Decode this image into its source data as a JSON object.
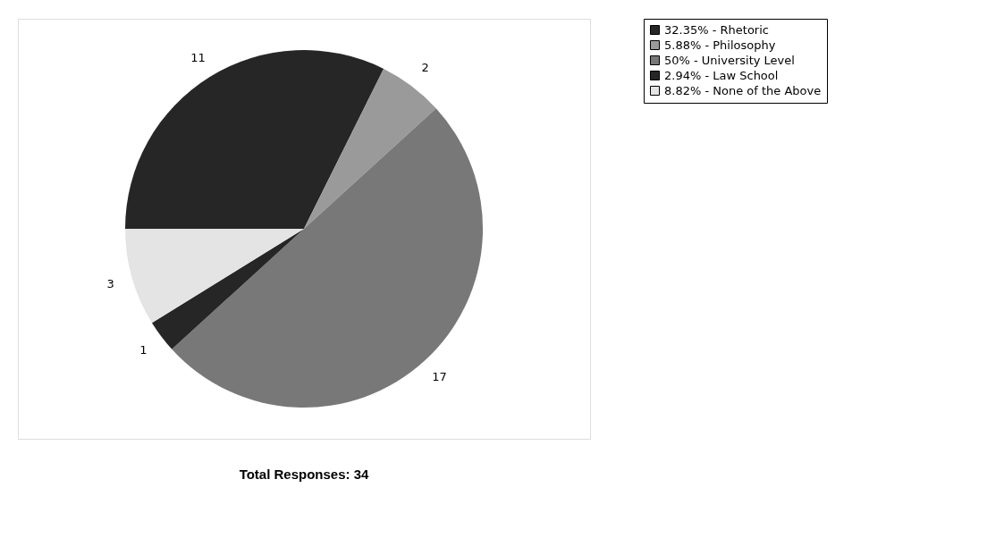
{
  "chart_data": {
    "type": "pie",
    "categories": [
      "32.35% - Rhetoric",
      "5.88% - Philosophy",
      "50% - University Level",
      "2.94% - Law School",
      "8.82% - None of the Above"
    ],
    "values": [
      11,
      2,
      17,
      1,
      3
    ],
    "colors": [
      "#262626",
      "#9a9a9a",
      "#787878",
      "#262626",
      "#e4e4e4"
    ],
    "data_labels": true,
    "legend": "right",
    "annotations": [
      "Total Responses: 34"
    ]
  }
}
